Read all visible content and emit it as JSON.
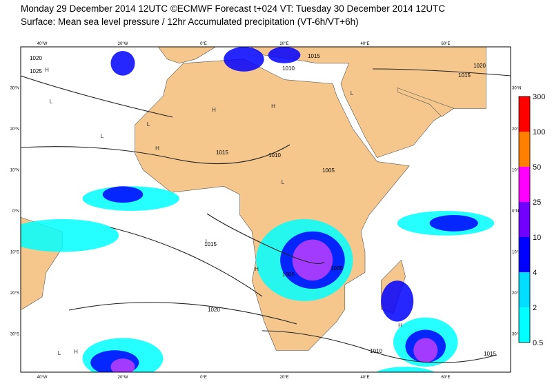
{
  "header": {
    "title_line1": "Monday 29 December 2014 12UTC ©ECMWF Forecast t+024 VT: Tuesday 30 December 2014 12UTC",
    "title_line2": "Surface: Mean sea level pressure / 12hr Accumulated precipitation (VT-6h/VT+6h)"
  },
  "map": {
    "lon_labels": [
      "40°W",
      "20°W",
      "0°E",
      "20°E",
      "40°E",
      "60°E"
    ],
    "lat_labels": [
      "30°N",
      "20°N",
      "10°N",
      "0°N",
      "10°S",
      "20°S",
      "30°S"
    ],
    "isobar_labels": [
      "1020",
      "1025",
      "1015",
      "1010",
      "1015",
      "1005",
      "1015",
      "1020",
      "1005",
      "1005",
      "1010",
      "1015",
      "1020",
      "1010",
      "1015"
    ],
    "center_labels": [
      "H",
      "L",
      "H",
      "L",
      "H",
      "L",
      "H",
      "L",
      "H",
      "L",
      "L",
      "H",
      "L",
      "H"
    ]
  },
  "colorbar": {
    "labels": [
      "0.5",
      "2",
      "4",
      "10",
      "25",
      "50",
      "100",
      "300"
    ],
    "colors": [
      "#00ffff",
      "#00ddff",
      "#0000ff",
      "#7000ff",
      "#ff00ff",
      "#ff8000",
      "#ff0000"
    ]
  }
}
